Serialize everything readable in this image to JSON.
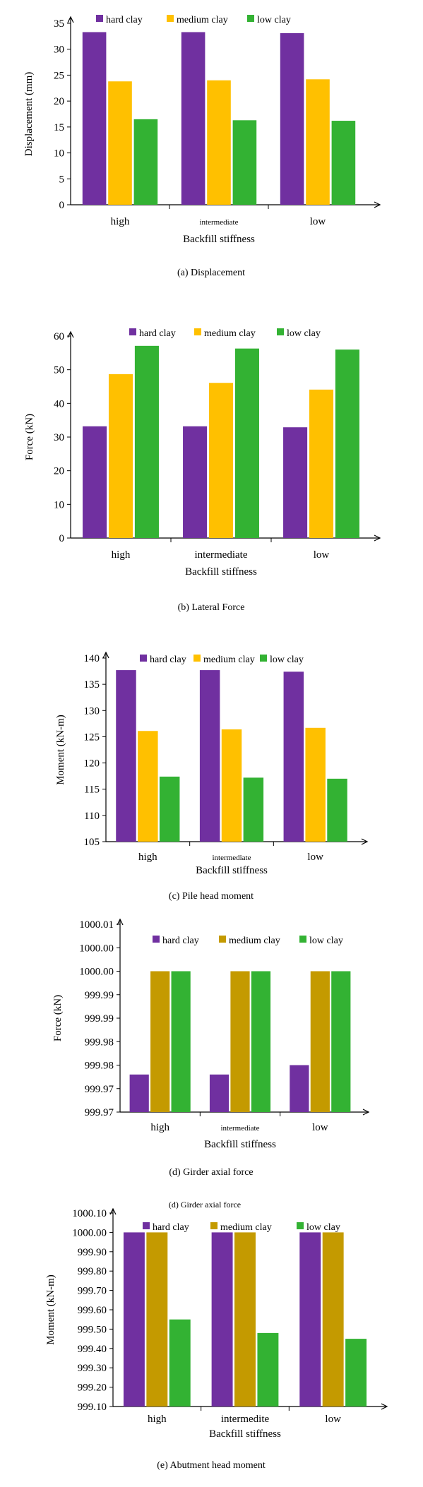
{
  "figure": {
    "extra_caption": "(d) Girder axial force"
  },
  "colors": {
    "hard": "#7030A0",
    "medium": "#FFC000",
    "medium_panel_d": "#C49A00",
    "low": "#33B233"
  },
  "chart_data": [
    {
      "type": "bar",
      "caption": "(a) Displacement",
      "title": "",
      "xlabel": "Backfill stiffness",
      "ylabel": "Displacement (mm)",
      "categories": [
        "high",
        "intermediate",
        "low"
      ],
      "ylim": [
        0,
        35
      ],
      "yticks": [
        "0",
        "5",
        "10",
        "15",
        "20",
        "25",
        "30",
        "35"
      ],
      "legend_position": "top",
      "series": [
        {
          "name": "hard clay",
          "color": "#7030A0",
          "values": [
            33.3,
            33.3,
            33.1
          ]
        },
        {
          "name": "medium clay",
          "color": "#FFC000",
          "values": [
            23.8,
            24.0,
            24.2
          ]
        },
        {
          "name": "low clay",
          "color": "#33B233",
          "values": [
            16.5,
            16.3,
            16.2
          ]
        }
      ]
    },
    {
      "type": "bar",
      "caption": "(b) Lateral Force",
      "title": "",
      "xlabel": "Backfill stiffness",
      "ylabel": "Force (kN)",
      "categories": [
        "high",
        "intermediate",
        "low"
      ],
      "ylim": [
        0,
        60
      ],
      "yticks": [
        "0",
        "10",
        "20",
        "30",
        "40",
        "50",
        "60"
      ],
      "legend_position": "top",
      "series": [
        {
          "name": "hard clay",
          "color": "#7030A0",
          "values": [
            33.2,
            33.2,
            32.9
          ]
        },
        {
          "name": "medium clay",
          "color": "#FFC000",
          "values": [
            48.7,
            46.1,
            44.1
          ]
        },
        {
          "name": "low clay",
          "color": "#33B233",
          "values": [
            57.1,
            56.3,
            56.0
          ]
        }
      ]
    },
    {
      "type": "bar",
      "caption": "(c) Pile head moment",
      "title": "",
      "xlabel": "Backfill stiffness",
      "ylabel": "Moment (kN-m)",
      "categories": [
        "high",
        "intermediate",
        "low"
      ],
      "ylim": [
        105,
        140
      ],
      "yticks": [
        "105",
        "110",
        "115",
        "120",
        "125",
        "130",
        "135",
        "140"
      ],
      "legend_position": "top",
      "series": [
        {
          "name": "hard clay",
          "color": "#7030A0",
          "values": [
            137.7,
            137.7,
            137.4
          ]
        },
        {
          "name": "medium clay",
          "color": "#FFC000",
          "values": [
            126.1,
            126.4,
            126.7
          ]
        },
        {
          "name": "low clay",
          "color": "#33B233",
          "values": [
            117.4,
            117.2,
            117.0
          ]
        }
      ]
    },
    {
      "type": "bar",
      "caption": "(d) Girder axial force",
      "title": "",
      "xlabel": "Backfill stiffness",
      "ylabel": "Force (kN)",
      "categories": [
        "high",
        "intermediate",
        "low"
      ],
      "ylim": [
        999.97,
        1000.01
      ],
      "yticks": [
        "999.97",
        "999.97",
        "999.98",
        "999.98",
        "999.99",
        "999.99",
        "1000.00",
        "1000.00",
        "1000.01"
      ],
      "legend_position": "top",
      "series": [
        {
          "name": "hard clay",
          "color": "#7030A0",
          "values": [
            999.978,
            999.978,
            999.98
          ]
        },
        {
          "name": "medium clay",
          "color": "#C49A00",
          "values": [
            1000.0,
            1000.0,
            1000.0
          ]
        },
        {
          "name": "low clay",
          "color": "#33B233",
          "values": [
            1000.0,
            1000.0,
            1000.0
          ]
        }
      ]
    },
    {
      "type": "bar",
      "caption": "(e) Abutment head moment",
      "title": "",
      "xlabel": "Backfill stiffness",
      "ylabel": "Moment (kN-m)",
      "categories": [
        "high",
        "intermedite",
        "low"
      ],
      "ylim": [
        999.1,
        1000.1
      ],
      "yticks": [
        "999.10",
        "999.20",
        "999.30",
        "999.40",
        "999.50",
        "999.60",
        "999.70",
        "999.80",
        "999.90",
        "1000.00",
        "1000.10"
      ],
      "legend_position": "top",
      "series": [
        {
          "name": "hard clay",
          "color": "#7030A0",
          "values": [
            1000.0,
            1000.0,
            1000.0
          ]
        },
        {
          "name": "medium clay",
          "color": "#C49A00",
          "values": [
            1000.0,
            1000.0,
            1000.0
          ]
        },
        {
          "name": "low clay",
          "color": "#33B233",
          "values": [
            999.55,
            999.48,
            999.45
          ]
        }
      ]
    }
  ]
}
